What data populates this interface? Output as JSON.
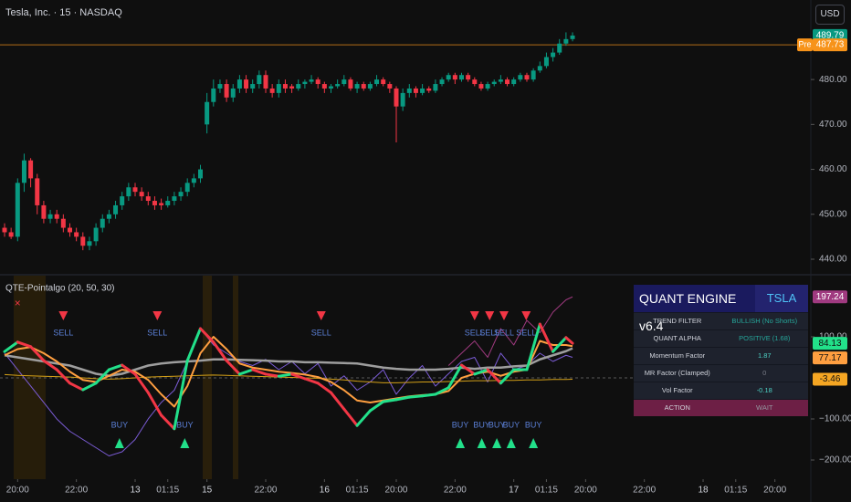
{
  "ui": {
    "currency": "USD"
  },
  "chart_data": [
    {
      "type": "candlestick",
      "title": "Tesla, Inc. · 15 · NASDAQ",
      "up_color": "#089981",
      "down_color": "#f23645",
      "ylim": [
        436.75,
        497.7
      ],
      "yticks": [
        {
          "value": 440,
          "label": "440.00"
        },
        {
          "value": 450,
          "label": "450.00"
        },
        {
          "value": 460,
          "label": "460.00"
        },
        {
          "value": 470,
          "label": "470.00"
        },
        {
          "value": 480,
          "label": "480.00"
        }
      ],
      "last_price": 489.79,
      "last_price_color": "#089981",
      "pre_market": {
        "label": "Pre",
        "value": 487.73,
        "color": "#f7931a"
      },
      "ohlc": [
        [
          447,
          448,
          445,
          446
        ],
        [
          446,
          447,
          444.5,
          445
        ],
        [
          445,
          458,
          444,
          457
        ],
        [
          457,
          463.5,
          455,
          462
        ],
        [
          462,
          462.5,
          456,
          458
        ],
        [
          458,
          459,
          450,
          452
        ],
        [
          452,
          453,
          448,
          449
        ],
        [
          449,
          451,
          448,
          450
        ],
        [
          450,
          451,
          448,
          449
        ],
        [
          449,
          450,
          446,
          447
        ],
        [
          447,
          448,
          445,
          446
        ],
        [
          446,
          447,
          444,
          445
        ],
        [
          445,
          446,
          442,
          443
        ],
        [
          443,
          445,
          442,
          444
        ],
        [
          444,
          448,
          443,
          447
        ],
        [
          447,
          450,
          446,
          449
        ],
        [
          449,
          451,
          448,
          450
        ],
        [
          450,
          453,
          449,
          452
        ],
        [
          452,
          455,
          451,
          454
        ],
        [
          454,
          457,
          453,
          456
        ],
        [
          456,
          457,
          454,
          455
        ],
        [
          455,
          456,
          453,
          454
        ],
        [
          454,
          455,
          452,
          453
        ],
        [
          453,
          454,
          451,
          452
        ],
        [
          452.5,
          453.5,
          451,
          452
        ],
        [
          452,
          454,
          451.5,
          453
        ],
        [
          453,
          455,
          452,
          454
        ],
        [
          454,
          456,
          453,
          455
        ],
        [
          455,
          458,
          454,
          457
        ],
        [
          457,
          459,
          456,
          458
        ],
        [
          458,
          461,
          457,
          460
        ],
        [
          470,
          477,
          468,
          475
        ],
        [
          475,
          480,
          474,
          478
        ],
        [
          478,
          480,
          477,
          479
        ],
        [
          479,
          480,
          475,
          476
        ],
        [
          476,
          479,
          475,
          478
        ],
        [
          478,
          481,
          477,
          480
        ],
        [
          480,
          481,
          477,
          478
        ],
        [
          478,
          480,
          477,
          479
        ],
        [
          479,
          482,
          478,
          481
        ],
        [
          481,
          482,
          477,
          478
        ],
        [
          478,
          479,
          476,
          477
        ],
        [
          477,
          480,
          476,
          479
        ],
        [
          479,
          480,
          477,
          478
        ],
        [
          478.5,
          479,
          477,
          478
        ],
        [
          478,
          480,
          477.5,
          479
        ],
        [
          479,
          480,
          478,
          479.5
        ],
        [
          479.5,
          481,
          479,
          480
        ],
        [
          480,
          480.5,
          478,
          479
        ],
        [
          479,
          479.5,
          477,
          478
        ],
        [
          478,
          479,
          477,
          478.5
        ],
        [
          478.5,
          480,
          478,
          479
        ],
        [
          479,
          481,
          478.5,
          480
        ],
        [
          480,
          480.5,
          477.5,
          478
        ],
        [
          478,
          479.5,
          477,
          479
        ],
        [
          479,
          479.5,
          477.5,
          478
        ],
        [
          478,
          479.5,
          477.5,
          479
        ],
        [
          479,
          481,
          478.5,
          480
        ],
        [
          480,
          480.5,
          478.5,
          479
        ],
        [
          479,
          479.5,
          477,
          478
        ],
        [
          478,
          478.5,
          466,
          474
        ],
        [
          474,
          478,
          473,
          477
        ],
        [
          477,
          479,
          476,
          478
        ],
        [
          478,
          478.5,
          476,
          477
        ],
        [
          477,
          479,
          476.5,
          478
        ],
        [
          478,
          478.5,
          477,
          477.5
        ],
        [
          477.5,
          480,
          477,
          479
        ],
        [
          479,
          480.5,
          478.5,
          480
        ],
        [
          480,
          481.5,
          479.5,
          481
        ],
        [
          481,
          481.5,
          479,
          480
        ],
        [
          480,
          481.5,
          479.5,
          481
        ],
        [
          481,
          481.5,
          479.5,
          480
        ],
        [
          480,
          480.5,
          478.5,
          479
        ],
        [
          479,
          479.5,
          477.5,
          478
        ],
        [
          478,
          479.5,
          477.5,
          479
        ],
        [
          479,
          480,
          478.5,
          479.5
        ],
        [
          479.5,
          481,
          479,
          480
        ],
        [
          480,
          480.5,
          478.5,
          479
        ],
        [
          479,
          480.5,
          478.5,
          480
        ],
        [
          480,
          481.5,
          479.5,
          481
        ],
        [
          481,
          481.5,
          479.5,
          480
        ],
        [
          480,
          482.5,
          479.5,
          482
        ],
        [
          482,
          484,
          481.5,
          483
        ],
        [
          483,
          486,
          482.5,
          485
        ],
        [
          485,
          487,
          484,
          486
        ],
        [
          486,
          489,
          485.5,
          488
        ],
        [
          488,
          490.5,
          487.5,
          489
        ],
        [
          489,
          490.5,
          488.5,
          489.79
        ]
      ]
    },
    {
      "type": "oscillator",
      "title": "QTE-Pointalgo (20, 50, 30)",
      "ylim": [
        -246.7,
        248.9
      ],
      "yticks": [
        {
          "value": 100,
          "label": "100.00"
        },
        {
          "value": -100,
          "label": "−100.00"
        },
        {
          "value": -200,
          "label": "−200.00"
        }
      ],
      "hline": 0,
      "xlim": [
        -0.7,
        123.5
      ],
      "xticks": [
        {
          "value": 2,
          "label": "20:00"
        },
        {
          "value": 11,
          "label": "22:00"
        },
        {
          "value": 20,
          "label": "13"
        },
        {
          "value": 25,
          "label": "01:15"
        },
        {
          "value": 31,
          "label": "15"
        },
        {
          "value": 40,
          "label": "22:00"
        },
        {
          "value": 49,
          "label": "16"
        },
        {
          "value": 54,
          "label": "01:15"
        },
        {
          "value": 60,
          "label": "20:00"
        },
        {
          "value": 69,
          "label": "22:00"
        },
        {
          "value": 78,
          "label": "17"
        },
        {
          "value": 83,
          "label": "01:15"
        },
        {
          "value": 89,
          "label": "20:00"
        },
        {
          "value": 98,
          "label": "22:00"
        },
        {
          "value": 107,
          "label": "18"
        },
        {
          "value": 112,
          "label": "01:15"
        },
        {
          "value": 118,
          "label": "20:00"
        }
      ],
      "x": [
        0,
        2,
        4,
        6,
        8,
        10,
        12,
        14,
        16,
        18,
        20,
        22,
        24,
        26,
        28,
        30,
        32,
        34,
        36,
        38,
        40,
        42,
        44,
        46,
        48,
        50,
        52,
        54,
        56,
        58,
        60,
        62,
        64,
        66,
        68,
        70,
        72,
        74,
        76,
        78,
        80,
        82,
        84,
        86,
        87
      ],
      "series": [
        {
          "color": "#7b5cd6",
          "width": 1,
          "values": [
            60,
            20,
            -20,
            -60,
            -100,
            -130,
            -150,
            -170,
            -190,
            -180,
            -150,
            -100,
            -60,
            -30,
            40,
            120,
            80,
            60,
            40,
            30,
            45,
            20,
            40,
            10,
            35,
            -20,
            5,
            -30,
            -10,
            20,
            -40,
            0,
            30,
            -20,
            10,
            40,
            50,
            -10,
            60,
            20,
            30,
            60,
            40,
            55,
            50
          ]
        },
        {
          "color": "#a03a80",
          "width": 1,
          "badge_text_color": "#ffffff",
          "values": [
            null,
            null,
            null,
            null,
            null,
            null,
            null,
            null,
            null,
            null,
            null,
            null,
            null,
            null,
            null,
            null,
            null,
            null,
            null,
            null,
            null,
            null,
            null,
            null,
            null,
            null,
            null,
            null,
            null,
            null,
            null,
            null,
            null,
            null,
            30,
            60,
            90,
            50,
            120,
            80,
            140,
            110,
            160,
            190,
            197.24
          ]
        },
        {
          "color": "#d4a017",
          "width": 1,
          "badge_color": "#f5a623",
          "badge_text_color": "#111111",
          "values": [
            8,
            6,
            5,
            4,
            3,
            2,
            0,
            -2,
            -3,
            -2,
            0,
            2,
            3,
            4,
            5,
            6,
            7,
            6,
            5,
            4,
            3,
            2,
            1,
            0,
            -1,
            -3,
            -5,
            -8,
            -10,
            -12,
            -12,
            -11,
            -10,
            -10,
            -9,
            -8,
            -7,
            -7,
            -6,
            -6,
            -5,
            -5,
            -4,
            -4,
            -3.46
          ]
        },
        {
          "color": "#9e9e9e",
          "width": 2.5,
          "values": [
            55,
            50,
            45,
            40,
            35,
            30,
            20,
            10,
            5,
            10,
            20,
            30,
            35,
            38,
            40,
            42,
            45,
            45,
            44,
            43,
            42,
            40,
            40,
            38,
            38,
            37,
            36,
            35,
            30,
            25,
            22,
            20,
            20,
            20,
            22,
            25,
            22,
            25,
            25,
            28,
            30,
            45,
            55,
            65,
            72
          ]
        },
        {
          "color": "#ff9f40",
          "width": 2,
          "badge_text_color": "#111111",
          "values": [
            55,
            70,
            75,
            60,
            40,
            15,
            -5,
            -10,
            5,
            20,
            15,
            -5,
            -40,
            -70,
            -20,
            60,
            100,
            70,
            35,
            25,
            20,
            15,
            12,
            8,
            2,
            -10,
            -30,
            -55,
            -60,
            -55,
            -50,
            -45,
            -42,
            -40,
            -32,
            0,
            10,
            15,
            5,
            15,
            20,
            90,
            80,
            80,
            77.17
          ]
        },
        {
          "color": "#22e08a",
          "down_color": "#f23645",
          "width": 3,
          "badge_text_color": "#111111",
          "values": [
            64,
            87,
            76,
            42,
            20,
            -13,
            -29,
            -13,
            20,
            31,
            9,
            -36,
            -91,
            -124,
            42,
            120,
            87,
            42,
            9,
            20,
            9,
            4,
            9,
            -2,
            -13,
            -36,
            -76,
            -116,
            -80,
            -58,
            -53,
            -47,
            -44,
            -40,
            -24,
            31,
            9,
            20,
            -13,
            20,
            20,
            131,
            64,
            98,
            84.13
          ]
        }
      ],
      "sell_color": "#f23645",
      "buy_color": "#22e08a",
      "signal_text_color": "#5b7fd6",
      "signals": [
        {
          "side": "sell",
          "x": 9,
          "label": "SELL"
        },
        {
          "side": "sell",
          "x": 23.4,
          "label": "SELL"
        },
        {
          "side": "sell",
          "x": 48.5,
          "label": "SELL"
        },
        {
          "side": "sell",
          "x": 72,
          "label": "SELL"
        },
        {
          "side": "sell",
          "x": 74.3,
          "label": "SELL"
        },
        {
          "side": "sell",
          "x": 76.5,
          "label": "SELL"
        },
        {
          "side": "sell",
          "x": 79.9,
          "label": "SELL"
        },
        {
          "side": "buy",
          "x": 17.6,
          "label": "BUY"
        },
        {
          "side": "buy",
          "x": 27.6,
          "label": "BUY"
        },
        {
          "side": "buy",
          "x": 69.8,
          "label": "BUY"
        },
        {
          "side": "buy",
          "x": 73.1,
          "label": "BUY"
        },
        {
          "side": "buy",
          "x": 75.4,
          "label": "BUY"
        },
        {
          "side": "buy",
          "x": 77.6,
          "label": "BUY"
        },
        {
          "side": "buy",
          "x": 81,
          "label": "BUY"
        }
      ],
      "markers": [
        {
          "x": 2,
          "label": "×",
          "color": "#f23645"
        }
      ]
    }
  ],
  "panel": {
    "title": "QUANT ENGINE v6.4",
    "symbol": "TSLA",
    "rows": [
      {
        "label": "TREND FILTER",
        "value": "BULLISH (No Shorts)",
        "color": "#26a69a"
      },
      {
        "label": "QUANT ALPHA",
        "value": "POSITIVE (1.68)",
        "color": "#26a69a"
      },
      {
        "label": "Momentum Factor",
        "value": 1.87,
        "color": "#4dd0c4"
      },
      {
        "label": "MR Factor (Clamped)",
        "value": 0,
        "color": "#787b86"
      },
      {
        "label": "Vol Factor",
        "value": -0.18,
        "color": "#4dd0c4"
      },
      {
        "label": "ACTION",
        "value": "WAIT",
        "color": "#9598a1"
      }
    ]
  }
}
